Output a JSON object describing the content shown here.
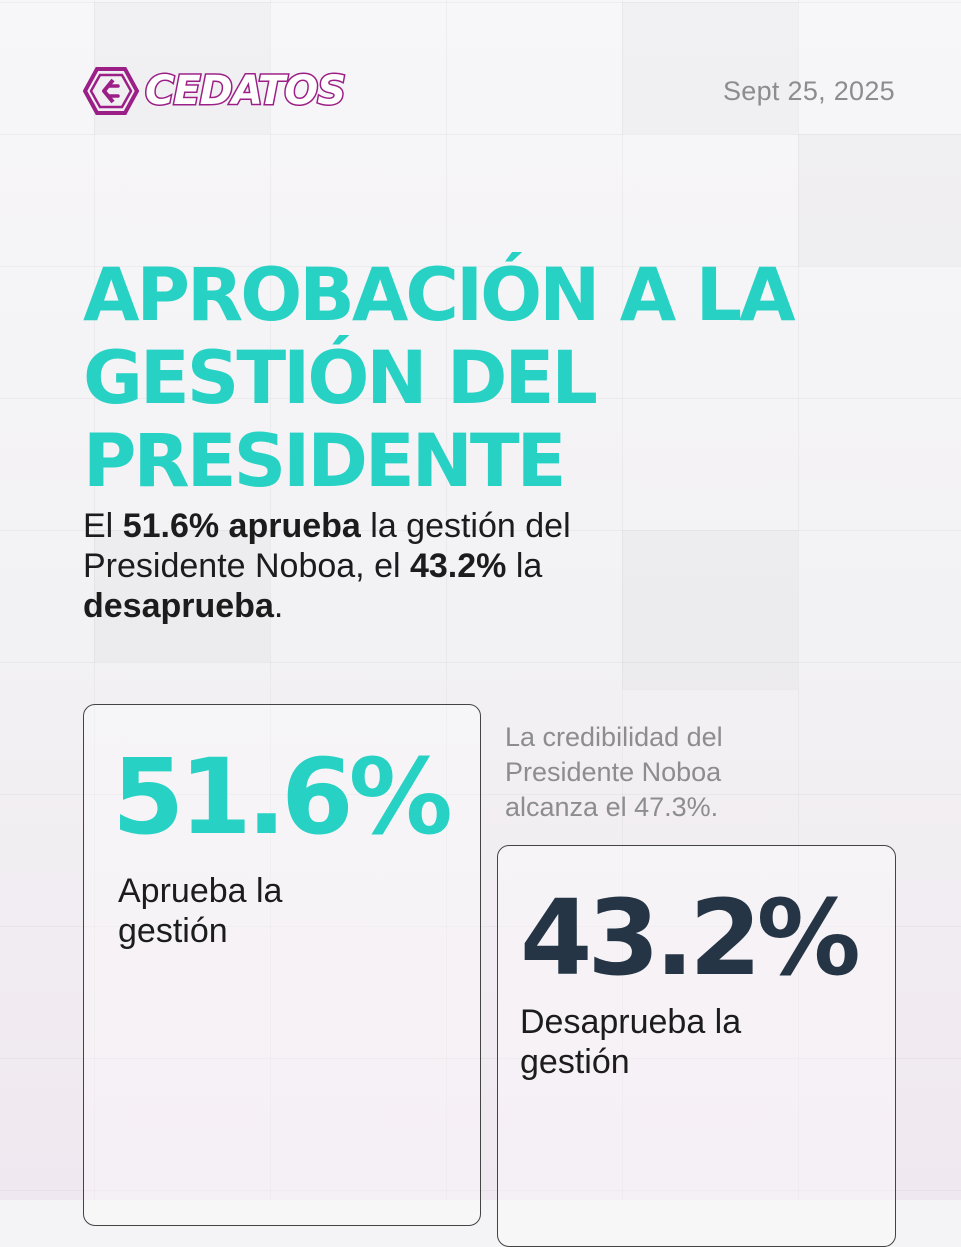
{
  "brand": {
    "name": "CEDATOS",
    "primary_color": "#9b1f86"
  },
  "date": "Sept 25, 2025",
  "title": "APROBACIÓN A LA GESTIÓN DEL PRESIDENTE",
  "summary": {
    "prefix": "El ",
    "approve_value": "51.6%",
    "approve_word": "aprueba",
    "middle": " la gestión del Presidente Noboa, el ",
    "disapprove_value": "43.2%",
    "between": " la ",
    "disapprove_word": "desaprueba",
    "suffix": "."
  },
  "cards": {
    "approve": {
      "value": "51.6%",
      "label": "Aprueba la gestión",
      "color": "#27d2c4"
    },
    "disapprove": {
      "value": "43.2%",
      "label": "Desaprueba la gestión",
      "color": "#253545"
    }
  },
  "credibility_note": "La credibilidad del Presidente Noboa alcanza el 47.3%."
}
